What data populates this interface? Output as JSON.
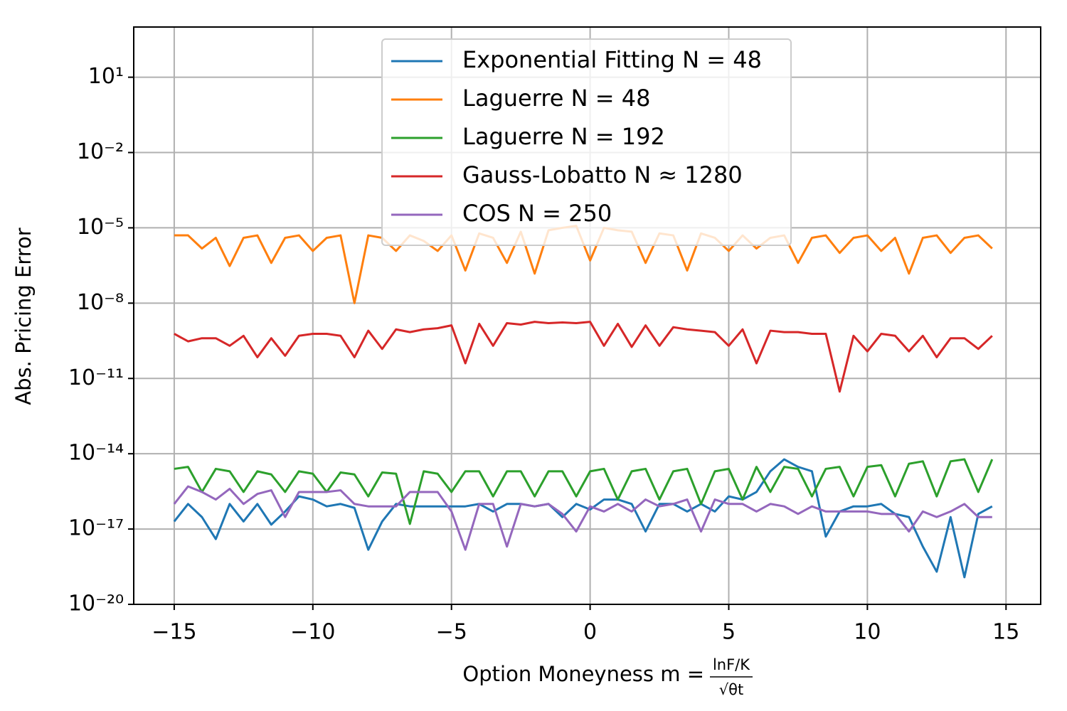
{
  "chart_data": {
    "type": "line",
    "ylabel": "Abs. Pricing Error",
    "xlabel": {
      "text": "Option Moneyness m =",
      "numerator": "lnF/K",
      "denominator": "√θt"
    },
    "yscale": "log",
    "grid": true,
    "legend": "upper center",
    "xlim": [
      -16.46,
      16.25
    ],
    "ylim": [
      1e-20,
      1000
    ],
    "xticks": [
      {
        "value": -15,
        "label": "−15"
      },
      {
        "value": -10,
        "label": "−10"
      },
      {
        "value": -5,
        "label": "−5"
      },
      0,
      5,
      10,
      15
    ],
    "yticks": [
      {
        "value": 10,
        "label": "10¹"
      },
      {
        "value": 0.01,
        "label": "10⁻²"
      },
      {
        "value": 1e-05,
        "label": "10⁻⁵"
      },
      {
        "value": 1e-08,
        "label": "10⁻⁸"
      },
      {
        "value": 1e-11,
        "label": "10⁻¹¹"
      },
      {
        "value": 1e-14,
        "label": "10⁻¹⁴"
      },
      {
        "value": 1e-17,
        "label": "10⁻¹⁷"
      },
      {
        "value": 1e-20,
        "label": "10⁻²⁰"
      }
    ],
    "x": [
      -15,
      -14.5,
      -14,
      -13.5,
      -13,
      -12.5,
      -12,
      -11.5,
      -11,
      -10.5,
      -10,
      -9.5,
      -9,
      -8.5,
      -8,
      -7.5,
      -7,
      -6.5,
      -6,
      -5.5,
      -5,
      -4.5,
      -4,
      -3.5,
      -3,
      -2.5,
      -2,
      -1.5,
      -1,
      -0.5,
      0,
      0.5,
      1,
      1.5,
      2,
      2.5,
      3,
      3.5,
      4,
      4.5,
      5,
      5.5,
      6,
      6.5,
      7,
      7.5,
      8,
      8.5,
      9,
      9.5,
      10,
      10.5,
      11,
      11.5,
      12,
      12.5,
      13,
      13.5,
      14,
      14.5
    ],
    "series": [
      {
        "name": "Exponential Fitting N = 48",
        "color": "#1f77b4",
        "values": [
          2e-17,
          1e-16,
          3e-17,
          4e-18,
          1e-16,
          2e-17,
          1e-16,
          1.5e-17,
          5e-17,
          2e-16,
          1.5e-16,
          8e-17,
          1e-16,
          7e-17,
          1.5e-18,
          2e-17,
          1e-16,
          8e-17,
          8e-17,
          8e-17,
          8e-17,
          8e-17,
          1e-16,
          5e-17,
          1e-16,
          1e-16,
          8e-17,
          1e-16,
          3e-17,
          1e-16,
          6e-17,
          1.5e-16,
          1.5e-16,
          1e-16,
          8e-18,
          1e-16,
          1e-16,
          5e-17,
          1e-16,
          5e-17,
          2e-16,
          1.5e-16,
          3e-16,
          2e-15,
          6e-15,
          3e-15,
          2e-15,
          5e-18,
          5e-17,
          8e-17,
          8e-17,
          1e-16,
          4e-17,
          3e-17,
          2e-18,
          2e-19,
          3e-17,
          1.2e-19,
          4e-17,
          8e-17
        ]
      },
      {
        "name": "Laguerre N = 48",
        "color": "#ff7f0e",
        "values": [
          5e-06,
          5e-06,
          1.5e-06,
          4e-06,
          3e-07,
          4e-06,
          5e-06,
          4e-07,
          4e-06,
          5e-06,
          1.2e-06,
          4e-06,
          5e-06,
          1e-08,
          5e-06,
          4e-06,
          1.2e-06,
          5e-06,
          3e-06,
          1.2e-06,
          5e-06,
          2e-07,
          6e-06,
          4e-06,
          4e-07,
          7e-06,
          1.5e-07,
          8e-06,
          1e-05,
          1.2e-05,
          5e-07,
          1e-05,
          8e-06,
          7e-06,
          4e-07,
          6e-06,
          5e-06,
          2e-07,
          6e-06,
          4e-06,
          1.2e-06,
          5e-06,
          1.5e-06,
          4e-06,
          5e-06,
          4e-07,
          4e-06,
          5e-06,
          1e-06,
          4e-06,
          5e-06,
          1.2e-06,
          4e-06,
          1.5e-07,
          4e-06,
          5e-06,
          1e-06,
          4e-06,
          5e-06,
          1.5e-06
        ]
      },
      {
        "name": "Laguerre N = 192",
        "color": "#2ca02c",
        "values": [
          2.5e-15,
          3e-15,
          3e-16,
          2.5e-15,
          2e-15,
          3e-16,
          2e-15,
          1.5e-15,
          3e-16,
          2e-15,
          1.6e-15,
          3e-16,
          1.8e-15,
          1.5e-15,
          2e-16,
          1.8e-15,
          1.6e-15,
          1.6e-17,
          2e-15,
          1.6e-15,
          3e-16,
          2e-15,
          2e-15,
          2e-16,
          2e-15,
          2e-15,
          2e-16,
          2e-15,
          2e-15,
          2e-16,
          2e-15,
          2.5e-15,
          1.5e-16,
          2e-15,
          2.5e-15,
          1.5e-16,
          2e-15,
          2.5e-15,
          1e-16,
          2e-15,
          2.5e-15,
          1.5e-16,
          3e-15,
          3e-16,
          3e-15,
          2.5e-15,
          2e-16,
          2.5e-15,
          3e-15,
          2e-16,
          3e-15,
          3.5e-15,
          2e-16,
          4e-15,
          5e-15,
          2e-16,
          5e-15,
          6e-15,
          3e-16,
          6e-15
        ]
      },
      {
        "name": "Gauss-Lobatto N ≈ 1280",
        "color": "#d62728",
        "values": [
          6e-10,
          3e-10,
          4e-10,
          4e-10,
          2e-10,
          5e-10,
          7e-11,
          4e-10,
          8e-11,
          5e-10,
          6e-10,
          6e-10,
          5e-10,
          7e-11,
          8e-10,
          1.5e-10,
          9e-10,
          7e-10,
          9e-10,
          1e-09,
          1.3e-09,
          4e-11,
          1.5e-09,
          2e-10,
          1.6e-09,
          1.4e-09,
          1.8e-09,
          1.6e-09,
          1.7e-09,
          1.6e-09,
          1.8e-09,
          2e-10,
          1.5e-09,
          1.8e-10,
          1.3e-09,
          2e-10,
          1.1e-09,
          9e-10,
          8e-10,
          7e-10,
          2e-10,
          9e-10,
          4e-11,
          8e-10,
          7e-10,
          7e-10,
          6e-10,
          6e-10,
          3e-12,
          5e-10,
          1.2e-10,
          6e-10,
          5e-10,
          1.2e-10,
          5e-10,
          7e-11,
          4e-10,
          4e-10,
          1.5e-10,
          5e-10
        ]
      },
      {
        "name": "COS N = 250",
        "color": "#9467bd",
        "values": [
          1e-16,
          5e-16,
          3e-16,
          1.5e-16,
          4e-16,
          1e-16,
          2.5e-16,
          3.5e-16,
          3e-17,
          3e-16,
          3e-16,
          3e-16,
          3.5e-16,
          1e-16,
          8e-17,
          8e-17,
          8e-17,
          3e-16,
          3e-16,
          3e-16,
          5e-17,
          1.5e-18,
          1e-16,
          1e-16,
          2e-18,
          1e-16,
          8e-17,
          1e-16,
          4e-17,
          8e-18,
          8e-17,
          5e-17,
          1e-16,
          5e-17,
          1.5e-16,
          8e-17,
          1e-16,
          1.5e-16,
          8e-18,
          1.5e-16,
          1e-16,
          1e-16,
          5e-17,
          1e-16,
          8e-17,
          4e-17,
          8e-17,
          5e-17,
          5e-17,
          5e-17,
          5e-17,
          4e-17,
          4e-17,
          8e-18,
          5e-17,
          3e-17,
          5e-17,
          1e-16,
          3e-17,
          3e-17
        ]
      }
    ]
  }
}
